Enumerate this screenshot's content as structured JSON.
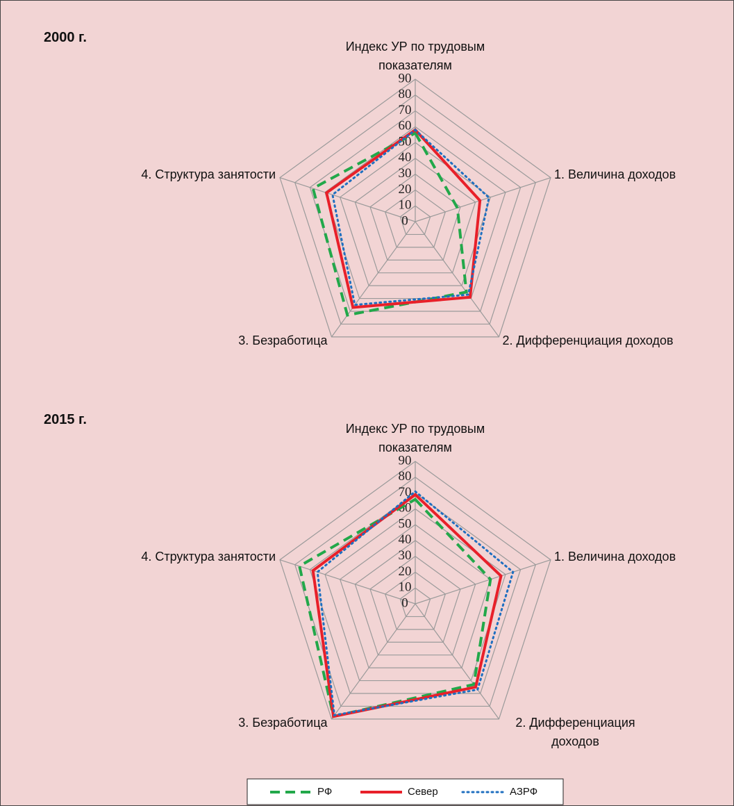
{
  "chart_data": [
    {
      "type": "radar",
      "title": "2000 г.",
      "categories": [
        "Индекс УР по трудовым показателям",
        "1. Величина доходов",
        "2. Дифференциация доходов",
        "3. Безработица",
        "4. Структура занятости"
      ],
      "rlim": [
        0,
        90
      ],
      "rticks": [
        0,
        10,
        20,
        30,
        40,
        50,
        60,
        70,
        80,
        90
      ],
      "grid": true,
      "series": [
        {
          "name": "РФ",
          "color": "#22a84a",
          "style": "dashed",
          "values": [
            56,
            28,
            55,
            73,
            68
          ]
        },
        {
          "name": "Север",
          "color": "#e8202a",
          "style": "solid",
          "values": [
            58,
            43,
            59,
            67,
            59
          ]
        },
        {
          "name": "АЗРФ",
          "color": "#1f6fc0",
          "style": "dotted",
          "values": [
            58,
            49,
            57,
            65,
            55
          ]
        }
      ]
    },
    {
      "type": "radar",
      "title": "2015 г.",
      "categories": [
        "Индекс УР по трудовым показателям",
        "1. Величина доходов",
        "2. Дифференциация доходов",
        "3. Безработица",
        "4. Структура занятости"
      ],
      "rlim": [
        0,
        90
      ],
      "rticks": [
        0,
        10,
        20,
        30,
        40,
        50,
        60,
        70,
        80,
        90
      ],
      "grid": true,
      "series": [
        {
          "name": "РФ",
          "color": "#22a84a",
          "style": "dashed",
          "values": [
            66,
            50,
            63,
            88,
            77
          ]
        },
        {
          "name": "Север",
          "color": "#e8202a",
          "style": "solid",
          "values": [
            69,
            57,
            65,
            88,
            68
          ]
        },
        {
          "name": "АЗРФ",
          "color": "#1f6fc0",
          "style": "dotted",
          "values": [
            71,
            65,
            67,
            87,
            65
          ]
        }
      ]
    }
  ],
  "legend": "bottom"
}
